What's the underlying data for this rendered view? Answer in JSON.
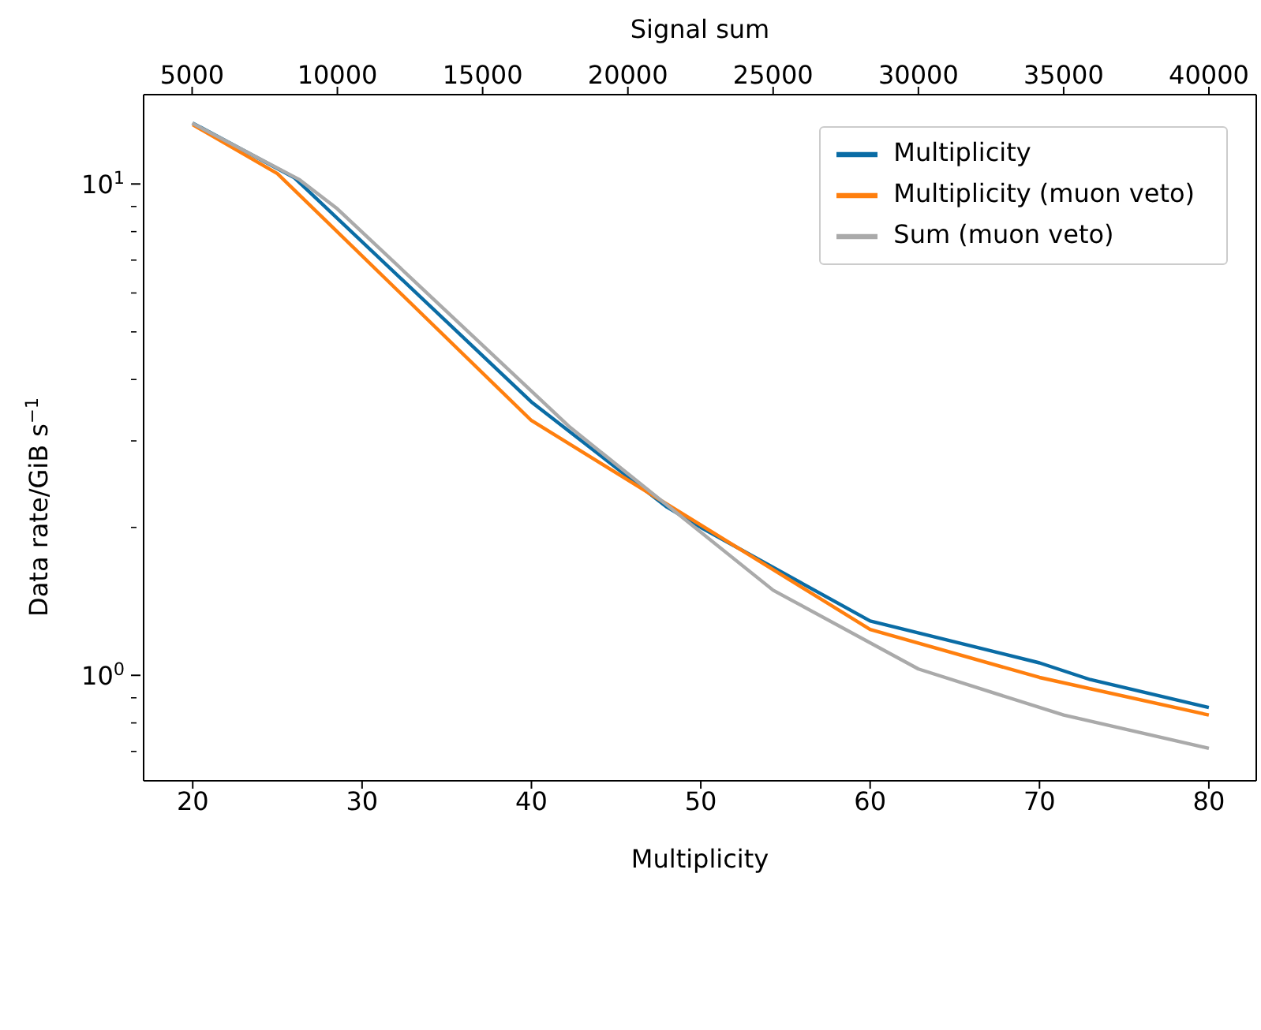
{
  "chart_data": {
    "type": "line",
    "xlabel": "Multiplicity",
    "x2label": "Signal sum",
    "ylabel": "Data rate/GiB s$^{−1}$",
    "log": "y",
    "legend": "top right",
    "marker": "none",
    "line_style": "solid",
    "xlim": [
      17.1,
      82.8
    ],
    "xticks": [
      20,
      30,
      40,
      50,
      60,
      70,
      80
    ],
    "x2lim": [
      3330,
      41630
    ],
    "x2ticks": [
      5000,
      10000,
      15000,
      20000,
      25000,
      30000,
      35000,
      40000
    ],
    "ylim": [
      0.61,
      15.2
    ],
    "yticks": [
      {
        "value": 0.7,
        "label": null
      },
      {
        "value": 0.8,
        "label": null
      },
      {
        "value": 0.9,
        "label": null
      },
      {
        "value": 1,
        "label": "10$^{0}$"
      },
      {
        "value": 2,
        "label": null
      },
      {
        "value": 3,
        "label": null
      },
      {
        "value": 4,
        "label": null
      },
      {
        "value": 5,
        "label": null
      },
      {
        "value": 6,
        "label": null
      },
      {
        "value": 7,
        "label": null
      },
      {
        "value": 8,
        "label": null
      },
      {
        "value": 9,
        "label": null
      },
      {
        "value": 10,
        "label": "10$^{1}$"
      }
    ],
    "series": [
      {
        "name": "Multiplicity",
        "color": "#0a6ca5",
        "x": [
          20,
          26,
          40,
          48,
          50,
          60,
          70,
          73,
          80
        ],
        "values": [
          13.3,
          10.3,
          3.6,
          2.2,
          2.0,
          1.29,
          1.06,
          0.98,
          0.86
        ]
      },
      {
        "name": "Multiplicity (muon veto)",
        "color": "#ff7f0e",
        "x": [
          20,
          25,
          40,
          60,
          70,
          80
        ],
        "values": [
          13.2,
          10.5,
          3.3,
          1.24,
          0.99,
          0.83
        ]
      },
      {
        "name": "Sum (muon veto)",
        "color": "#aaaaaa",
        "axis": "x2",
        "x": [
          5000,
          8700,
          10000,
          18000,
          25000,
          30000,
          35000,
          40000
        ],
        "values": [
          13.3,
          10.2,
          8.9,
          3.2,
          1.49,
          1.03,
          0.83,
          0.71
        ]
      }
    ]
  }
}
